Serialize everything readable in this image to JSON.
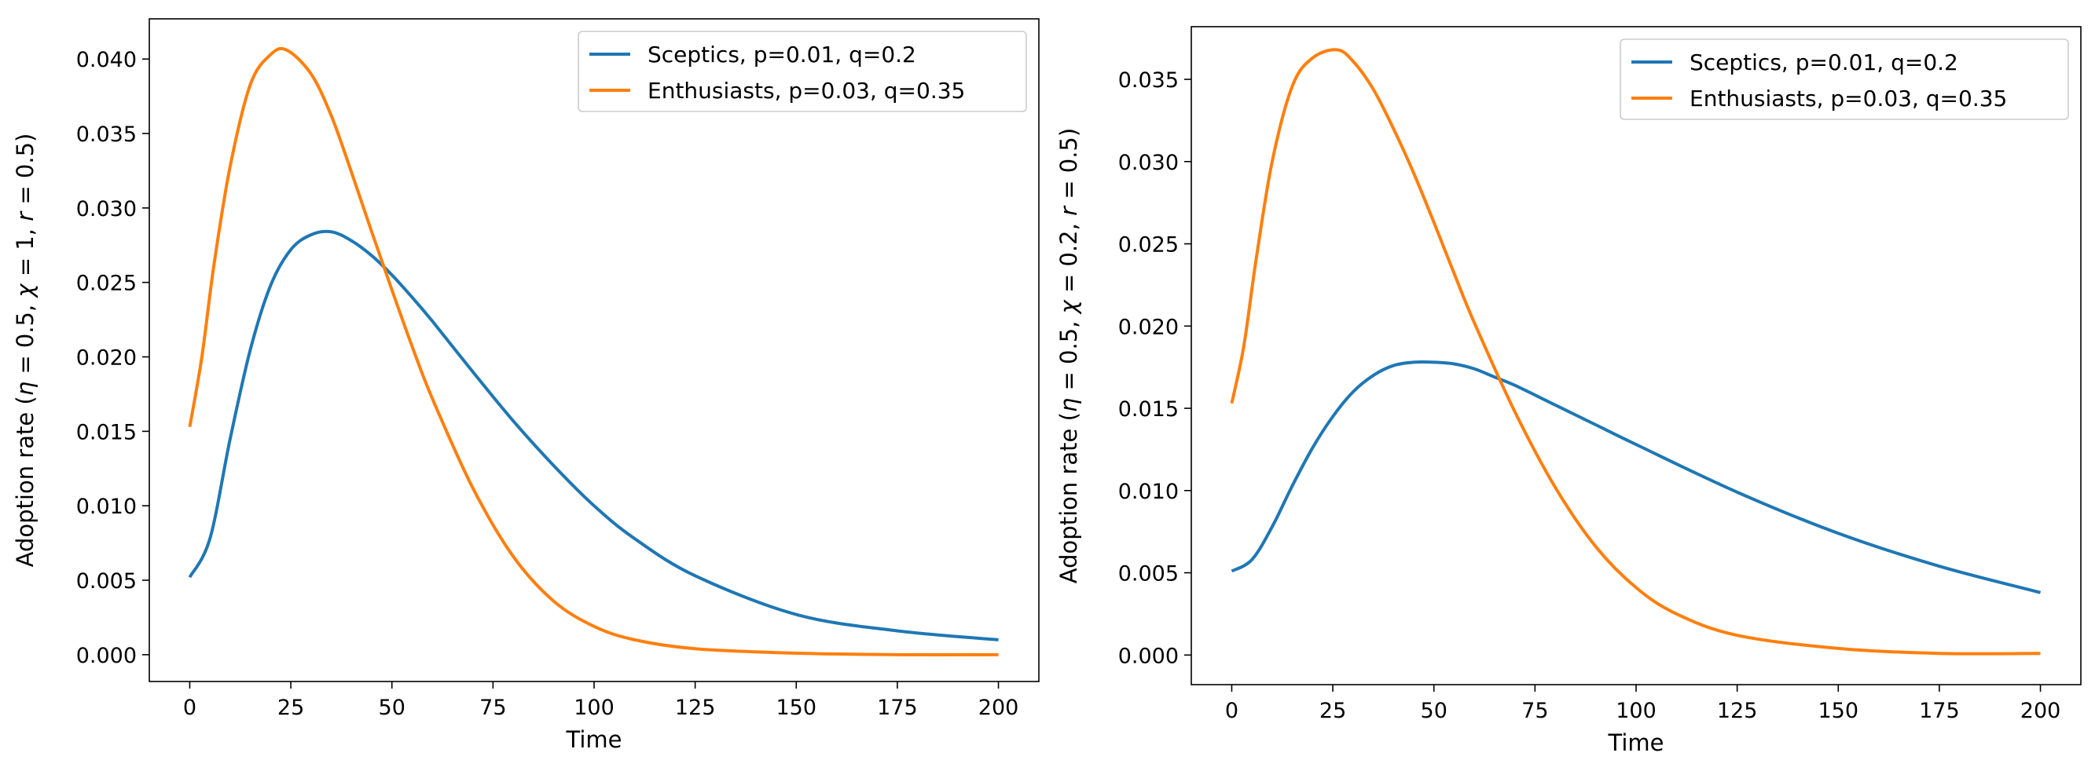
{
  "chart_data": [
    {
      "type": "line",
      "xlabel": "Time",
      "ylabel_parts": [
        "Adoption rate (",
        "η",
        " = 0.5, ",
        "χ",
        " = 1, ",
        "r",
        " = 0.5)"
      ],
      "xlim": [
        -10,
        210
      ],
      "ylim": [
        -0.0018,
        0.0427
      ],
      "xticks": [
        0,
        25,
        50,
        75,
        100,
        125,
        150,
        175,
        200
      ],
      "yticks": [
        0.0,
        0.005,
        0.01,
        0.015,
        0.02,
        0.025,
        0.03,
        0.035,
        0.04
      ],
      "ytick_labels": [
        "0.000",
        "0.005",
        "0.010",
        "0.015",
        "0.020",
        "0.025",
        "0.030",
        "0.035",
        "0.040"
      ],
      "legend_position": "top-right",
      "series": [
        {
          "name": "Sceptics, p=0.01, q=0.2",
          "color": "#1f77b4",
          "x": [
            0,
            5,
            10,
            15,
            20,
            25,
            30,
            35,
            40,
            45,
            50,
            55,
            60,
            70,
            80,
            90,
            100,
            110,
            125,
            150,
            175,
            200
          ],
          "y": [
            0.0052,
            0.0078,
            0.0145,
            0.0205,
            0.0248,
            0.0272,
            0.0282,
            0.0284,
            0.0278,
            0.0268,
            0.0255,
            0.024,
            0.0224,
            0.019,
            0.0157,
            0.0127,
            0.01,
            0.0078,
            0.0053,
            0.0027,
            0.0016,
            0.001
          ]
        },
        {
          "name": "Enthusiasts, p=0.03, q=0.35",
          "color": "#ff7f0e",
          "x": [
            0,
            3,
            6,
            10,
            15,
            20,
            24,
            30,
            35,
            40,
            45,
            50,
            55,
            60,
            70,
            80,
            90,
            100,
            110,
            125,
            150,
            175,
            200
          ],
          "y": [
            0.0153,
            0.02,
            0.0262,
            0.0328,
            0.0383,
            0.0403,
            0.0406,
            0.039,
            0.0362,
            0.0324,
            0.0284,
            0.0245,
            0.0207,
            0.0172,
            0.0112,
            0.0066,
            0.0036,
            0.0019,
            0.001,
            0.0004,
            0.0001,
            0.0,
            0.0
          ]
        }
      ]
    },
    {
      "type": "line",
      "xlabel": "Time",
      "ylabel_parts": [
        "Adoption rate (",
        "η",
        " = 0.5, ",
        "χ",
        " = 0.2, ",
        "r",
        " = 0.5)"
      ],
      "xlim": [
        -10,
        210
      ],
      "ylim": [
        -0.0018,
        0.0382
      ],
      "xticks": [
        0,
        25,
        50,
        75,
        100,
        125,
        150,
        175,
        200
      ],
      "yticks": [
        0.0,
        0.005,
        0.01,
        0.015,
        0.02,
        0.025,
        0.03,
        0.035
      ],
      "ytick_labels": [
        "0.000",
        "0.005",
        "0.010",
        "0.015",
        "0.020",
        "0.025",
        "0.030",
        "0.035"
      ],
      "legend_position": "top-right",
      "series": [
        {
          "name": "Sceptics, p=0.01, q=0.2",
          "color": "#1f77b4",
          "x": [
            0,
            5,
            10,
            15,
            20,
            25,
            30,
            35,
            40,
            45,
            50,
            55,
            60,
            65,
            70,
            80,
            90,
            100,
            125,
            150,
            175,
            200
          ],
          "y": [
            0.0051,
            0.0058,
            0.0078,
            0.0103,
            0.0126,
            0.0145,
            0.016,
            0.017,
            0.0176,
            0.0178,
            0.0178,
            0.0177,
            0.0174,
            0.0169,
            0.0164,
            0.0152,
            0.014,
            0.0128,
            0.0099,
            0.0074,
            0.0054,
            0.0038
          ]
        },
        {
          "name": "Enthusiasts, p=0.03, q=0.35",
          "color": "#ff7f0e",
          "x": [
            0,
            3,
            6,
            10,
            15,
            20,
            26,
            30,
            35,
            40,
            45,
            50,
            55,
            60,
            70,
            80,
            90,
            100,
            110,
            125,
            150,
            175,
            200
          ],
          "y": [
            0.0153,
            0.0188,
            0.024,
            0.03,
            0.0346,
            0.0363,
            0.0368,
            0.0361,
            0.0344,
            0.032,
            0.0293,
            0.0263,
            0.0232,
            0.0202,
            0.0148,
            0.0102,
            0.0066,
            0.0041,
            0.0025,
            0.0012,
            0.0004,
            0.0001,
            0.0001
          ]
        }
      ]
    }
  ]
}
